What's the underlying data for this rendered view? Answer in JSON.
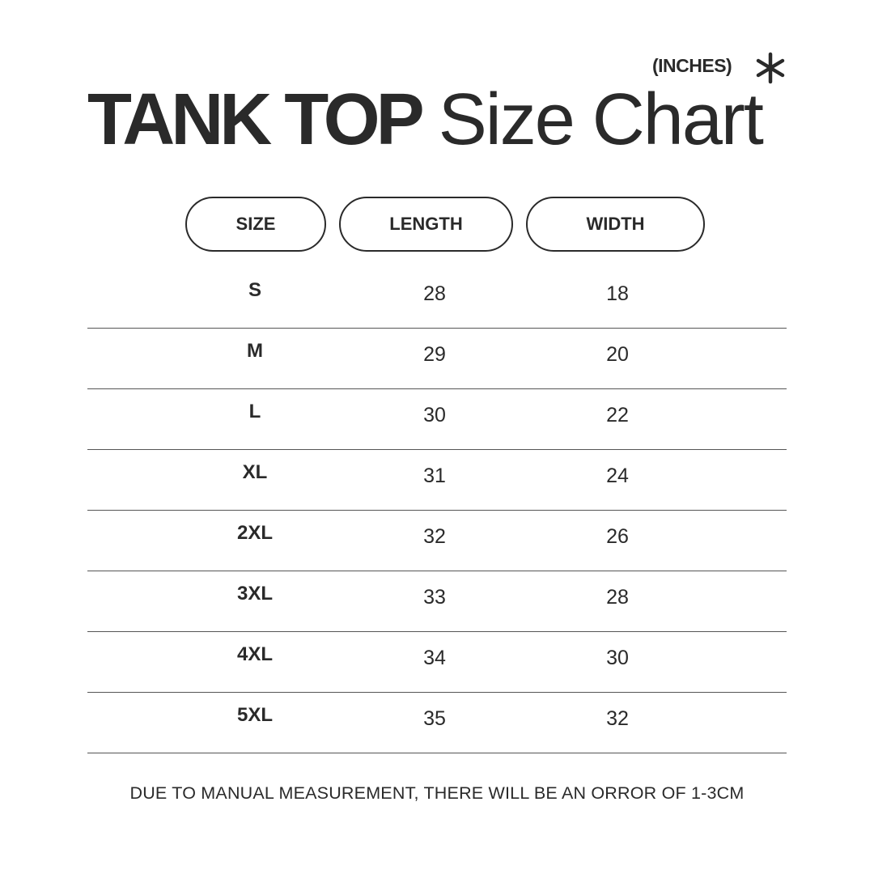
{
  "title": {
    "bold": "TANK TOP",
    "light": "Size Chart"
  },
  "units": "(INCHES)",
  "units_icon": "asterisk-icon",
  "headers": [
    "SIZE",
    "LENGTH",
    "WIDTH"
  ],
  "rows": [
    {
      "size": "S",
      "length": "28",
      "width": "18"
    },
    {
      "size": "M",
      "length": "29",
      "width": "20"
    },
    {
      "size": "L",
      "length": "30",
      "width": "22"
    },
    {
      "size": "XL",
      "length": "31",
      "width": "24"
    },
    {
      "size": "2XL",
      "length": "32",
      "width": "26"
    },
    {
      "size": "3XL",
      "length": "33",
      "width": "28"
    },
    {
      "size": "4XL",
      "length": "34",
      "width": "30"
    },
    {
      "size": "5XL",
      "length": "35",
      "width": "32"
    }
  ],
  "footer": "DUE TO MANUAL MEASUREMENT, THERE WILL BE AN ORROR OF 1-3CM"
}
